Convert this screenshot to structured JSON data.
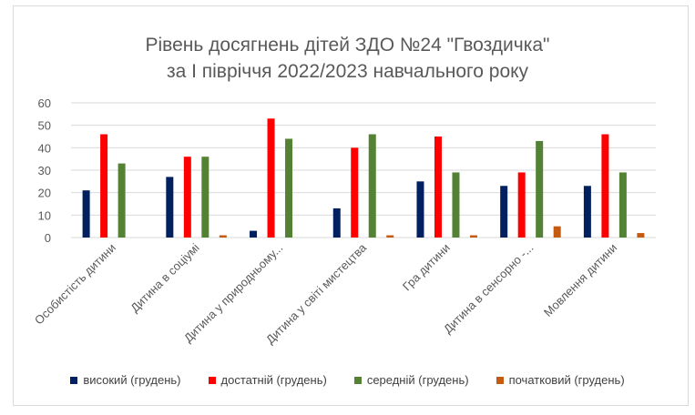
{
  "chart_data": {
    "type": "bar",
    "title": "Рівень досягнень дітей ЗДО №24 \"Гвоздичка\"",
    "subtitle": "за І півріччя 2022/2023 навчального року",
    "categories": [
      "Особистість дитини",
      "Дитина в соціумі",
      "Дитина у природньому...",
      "Дитина у світі мистецтва",
      "Гра дитини",
      "Дитина в сенсорно -...",
      "Мовлення дитини"
    ],
    "series": [
      {
        "name": "високий (грудень)",
        "color": "#002060",
        "values": [
          21,
          27,
          3,
          13,
          25,
          23,
          23
        ]
      },
      {
        "name": "достатній (грудень)",
        "color": "#ff0000",
        "values": [
          46,
          36,
          53,
          40,
          45,
          29,
          46
        ]
      },
      {
        "name": "середній (грудень)",
        "color": "#548235",
        "values": [
          33,
          36,
          44,
          46,
          29,
          43,
          29
        ]
      },
      {
        "name": "початковий  (грудень)",
        "color": "#c55a11",
        "values": [
          0,
          1,
          0,
          1,
          1,
          5,
          2
        ]
      }
    ],
    "ylim": [
      0,
      60
    ],
    "yticks": [
      "0",
      "10",
      "20",
      "30",
      "40",
      "50",
      "60"
    ],
    "grid": true,
    "legend_position": "bottom"
  }
}
